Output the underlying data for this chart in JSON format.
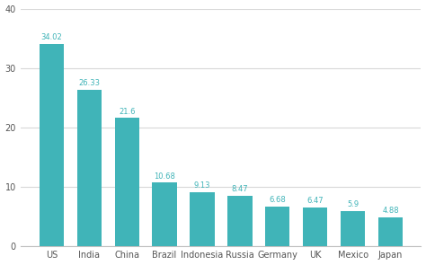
{
  "categories": [
    "US",
    "India",
    "China",
    "Brazil",
    "Indonesia",
    "Russia",
    "Germany",
    "UK",
    "Mexico",
    "Japan"
  ],
  "values": [
    34.02,
    26.33,
    21.6,
    10.68,
    9.13,
    8.47,
    6.68,
    6.47,
    5.9,
    4.88
  ],
  "bar_color": "#40b4b8",
  "label_color": "#40b4b8",
  "background_color": "#ffffff",
  "ylim": [
    0,
    40
  ],
  "yticks": [
    0,
    10,
    20,
    30,
    40
  ],
  "bar_width": 0.65,
  "label_fontsize": 6.0,
  "tick_fontsize": 7.0,
  "grid_color": "#d8d8d8",
  "spine_color": "#c0c0c0"
}
